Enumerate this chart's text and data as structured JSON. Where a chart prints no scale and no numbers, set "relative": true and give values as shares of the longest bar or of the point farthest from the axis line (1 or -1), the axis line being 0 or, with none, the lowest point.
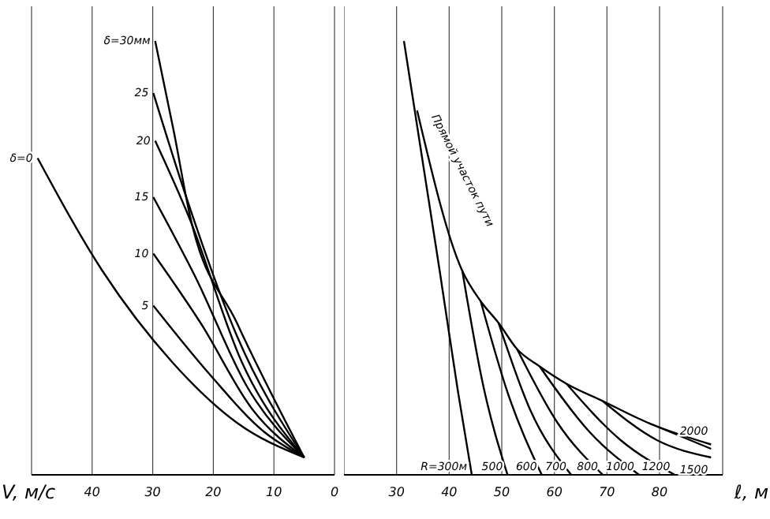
{
  "chart_data": [
    {
      "type": "line",
      "relative": true,
      "xlabel": "V, м/с",
      "xlim": [
        50,
        0
      ],
      "xticks": [
        40,
        30,
        20,
        10,
        0
      ],
      "grid": "x",
      "marker": "none",
      "line_style": "solid",
      "legend": false,
      "series": [
        {
          "name": "δ=0",
          "color": "#000000",
          "x": [
            49,
            38.3,
            26.8,
            16.1,
            5
          ],
          "values": [
            0.73,
            0.47,
            0.26,
            0.12,
            0.04
          ]
        },
        {
          "name": "5",
          "color": "#000000",
          "x": [
            29.9,
            20.5,
            11.7,
            5
          ],
          "values": [
            0.39,
            0.23,
            0.1,
            0.04
          ]
        },
        {
          "name": "10",
          "color": "#000000",
          "x": [
            29.9,
            22.1,
            13.5,
            5
          ],
          "values": [
            0.51,
            0.35,
            0.15,
            0.04
          ]
        },
        {
          "name": "15",
          "color": "#000000",
          "x": [
            29.9,
            23.1,
            14.3,
            5
          ],
          "values": [
            0.64,
            0.46,
            0.2,
            0.04
          ]
        },
        {
          "name": "20",
          "color": "#000000",
          "x": [
            29.6,
            23.9,
            15.3,
            5
          ],
          "values": [
            0.77,
            0.59,
            0.26,
            0.04
          ]
        },
        {
          "name": "25",
          "color": "#000000",
          "x": [
            29.9,
            24.7,
            16.1,
            5
          ],
          "values": [
            0.88,
            0.65,
            0.32,
            0.04
          ]
        },
        {
          "name": "δ=30мм",
          "color": "#000000",
          "x": [
            29.6,
            26.5,
            23.9,
            16.1,
            5
          ],
          "values": [
            1,
            0.79,
            0.6,
            0.35,
            0.04
          ]
        }
      ]
    },
    {
      "type": "line",
      "relative": true,
      "xlabel": "ℓ, м",
      "xlim": [
        20,
        92
      ],
      "xticks": [
        30,
        40,
        50,
        60,
        70,
        80
      ],
      "grid": "x",
      "marker": "none",
      "line_style": "solid",
      "legend": false,
      "series": [
        {
          "name": "Прямой участок пути",
          "color": "#000000",
          "x": [
            33.9,
            42.5,
            46,
            49.4,
            52.9,
            57.2,
            62.3,
            69.2,
            77.8,
            89.8
          ],
          "values": [
            0.84,
            0.47,
            0.4,
            0.35,
            0.29,
            0.25,
            0.21,
            0.17,
            0.12,
            0.07
          ]
        },
        {
          "name": "R=300м",
          "color": "#000000",
          "x": [
            31.4,
            38.2,
            41.7,
            44.3
          ],
          "values": [
            1,
            0.47,
            0.19,
            0
          ]
        },
        {
          "name": "500",
          "color": "#000000",
          "x": [
            42.5,
            46.4,
            51.1
          ],
          "values": [
            0.47,
            0.21,
            0
          ]
        },
        {
          "name": "600",
          "color": "#000000",
          "x": [
            46,
            51.1,
            57.6
          ],
          "values": [
            0.4,
            0.19,
            0
          ]
        },
        {
          "name": "700",
          "color": "#000000",
          "x": [
            49.4,
            55.4,
            63.2
          ],
          "values": [
            0.35,
            0.15,
            0
          ]
        },
        {
          "name": "800",
          "color": "#000000",
          "x": [
            52.9,
            60.6,
            69.2
          ],
          "values": [
            0.29,
            0.12,
            0
          ]
        },
        {
          "name": "1000",
          "color": "#000000",
          "x": [
            57.2,
            66.6,
            76.1
          ],
          "values": [
            0.25,
            0.1,
            0
          ]
        },
        {
          "name": "1200",
          "color": "#000000",
          "x": [
            62.3,
            72.6,
            82.9
          ],
          "values": [
            0.21,
            0.08,
            0
          ]
        },
        {
          "name": "1500",
          "color": "#000000",
          "x": [
            69.2,
            79.5,
            89.8
          ],
          "values": [
            0.17,
            0.08,
            0.04
          ]
        },
        {
          "name": "2000",
          "color": "#000000",
          "x": [
            77.8,
            89.8
          ],
          "values": [
            0.12,
            0.06
          ]
        }
      ]
    }
  ]
}
